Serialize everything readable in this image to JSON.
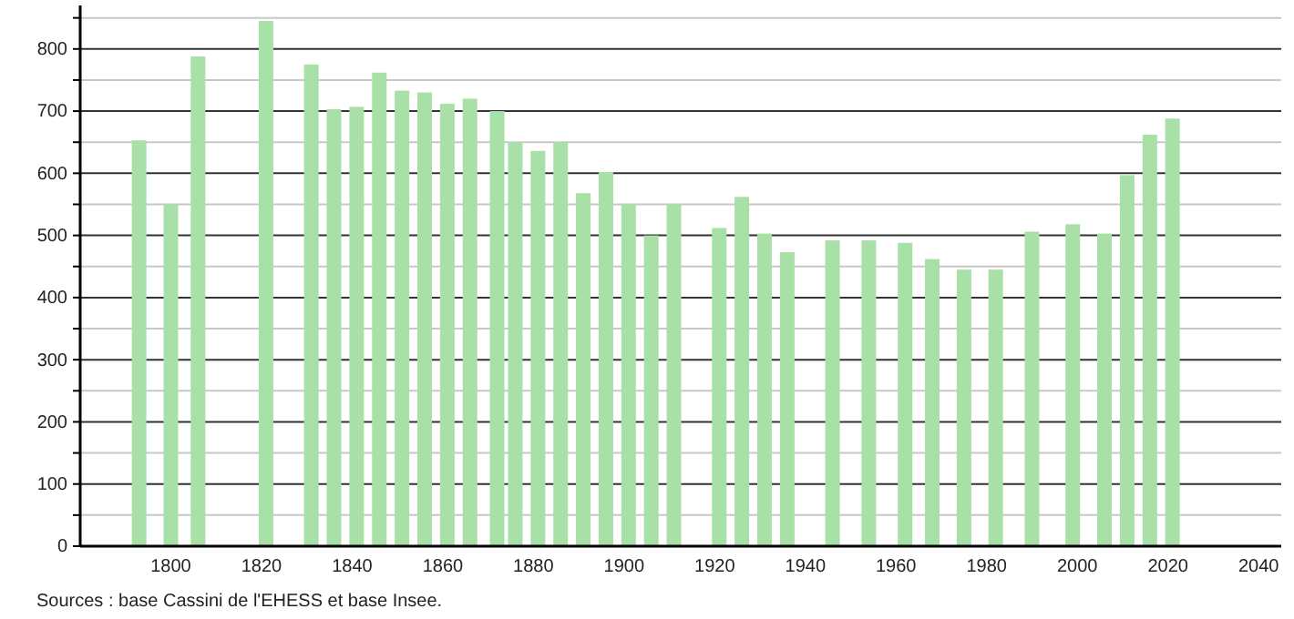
{
  "chart_data": {
    "type": "bar",
    "x": [
      1793,
      1800,
      1806,
      1821,
      1831,
      1836,
      1841,
      1846,
      1851,
      1856,
      1861,
      1866,
      1872,
      1876,
      1881,
      1886,
      1891,
      1896,
      1901,
      1906,
      1911,
      1921,
      1926,
      1931,
      1936,
      1946,
      1954,
      1962,
      1968,
      1975,
      1982,
      1990,
      1999,
      2006,
      2011,
      2016,
      2021
    ],
    "values": [
      653,
      550,
      788,
      845,
      775,
      703,
      707,
      762,
      733,
      730,
      712,
      720,
      700,
      650,
      636,
      650,
      568,
      602,
      550,
      500,
      550,
      512,
      562,
      503,
      473,
      492,
      492,
      488,
      462,
      445,
      445,
      506,
      518,
      503,
      597,
      662,
      688
    ],
    "color": "#a8e0a8",
    "xlim": [
      1780,
      2045
    ],
    "xticks": [
      1800,
      1820,
      1840,
      1860,
      1880,
      1900,
      1920,
      1940,
      1960,
      1980,
      2000,
      2020,
      2040
    ],
    "ylim": [
      0,
      870
    ],
    "yticks": [
      0,
      {
        "value": 50,
        "label": null
      },
      100,
      {
        "value": 150,
        "label": null
      },
      200,
      {
        "value": 250,
        "label": null
      },
      300,
      {
        "value": 350,
        "label": null
      },
      400,
      {
        "value": 450,
        "label": null
      },
      500,
      {
        "value": 550,
        "label": null
      },
      600,
      {
        "value": 650,
        "label": null
      },
      700,
      {
        "value": 750,
        "label": null
      },
      800,
      {
        "value": 850,
        "label": null
      }
    ],
    "grid": "y",
    "annotations": [
      "Sources : base Cassini de l'EHESS et base Insee."
    ]
  }
}
